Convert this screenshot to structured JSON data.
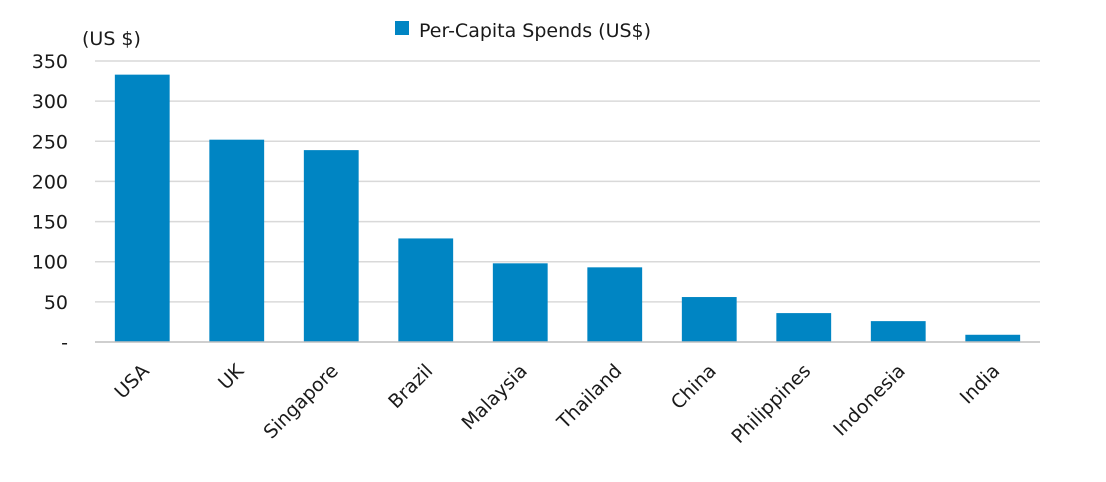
{
  "chart_data": {
    "type": "bar",
    "ylabel": "(US $)",
    "categories": [
      "USA",
      "UK",
      "Singapore",
      "Brazil",
      "Malaysia",
      "Thailand",
      "China",
      "Philippines",
      "Indonesia",
      "India"
    ],
    "series": [
      {
        "name": "Per-Capita Spends (US$)",
        "values": [
          333,
          252,
          239,
          129,
          98,
          93,
          56,
          36,
          26,
          9
        ]
      }
    ],
    "ylim": [
      0,
      350
    ],
    "yticks": [
      0,
      50,
      100,
      150,
      200,
      250,
      300,
      350
    ],
    "ytick_labels": [
      "-",
      "50",
      "100",
      "150",
      "200",
      "250",
      "300",
      "350"
    ],
    "grid": true,
    "legend_position": "top-center",
    "colors": {
      "bar": "#0085C3",
      "grid": "#d9d9d9",
      "axis": "#bfbfbf",
      "text": "#1a1a1a"
    }
  }
}
